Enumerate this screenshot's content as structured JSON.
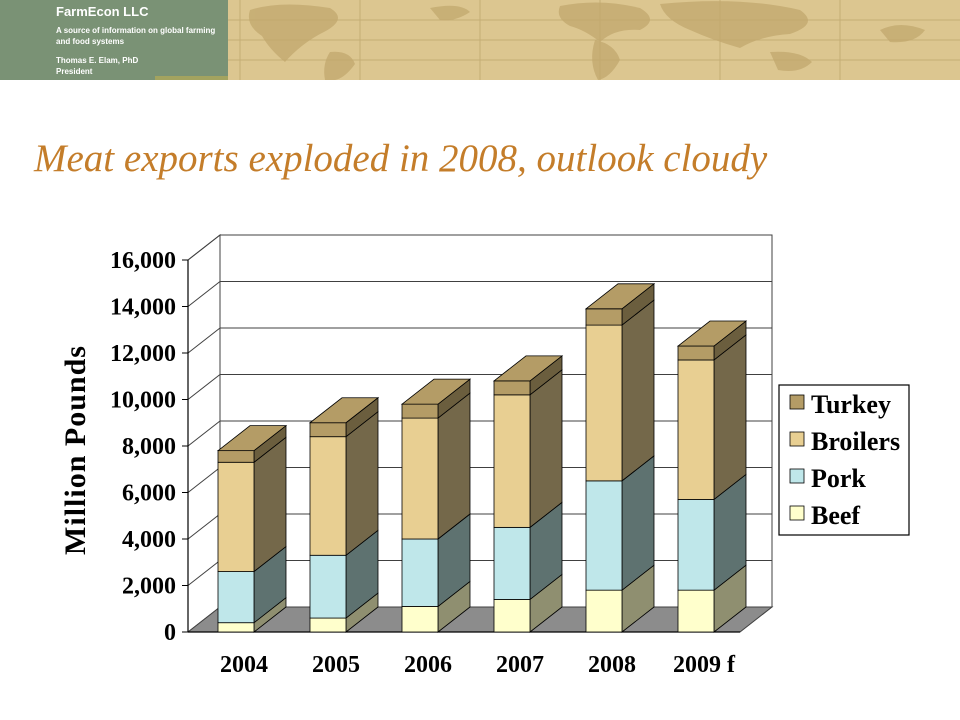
{
  "header": {
    "company": "FarmEcon LLC",
    "tagline": "A source of information on global farming and food systems",
    "person": "Thomas E. Elam, PhD",
    "role": "President"
  },
  "slide": {
    "title": "Meat exports exploded in 2008, outlook cloudy"
  },
  "chart_data": {
    "type": "bar",
    "stacked": true,
    "style": "3d",
    "categories": [
      "2004",
      "2005",
      "2006",
      "2007",
      "2008",
      "2009 f"
    ],
    "series": [
      {
        "name": "Beef",
        "values": [
          400,
          600,
          1100,
          1400,
          1800,
          1800
        ],
        "color": "#ffffcc",
        "side_color": "#8f8f70"
      },
      {
        "name": "Pork",
        "values": [
          2200,
          2700,
          2900,
          3100,
          4700,
          3900
        ],
        "color": "#bfe7ea",
        "side_color": "#5e7270"
      },
      {
        "name": "Broilers",
        "values": [
          4700,
          5100,
          5200,
          5700,
          6700,
          6000
        ],
        "color": "#e8cf92",
        "side_color": "#74684a"
      },
      {
        "name": "Turkey",
        "values": [
          500,
          600,
          600,
          600,
          700,
          600
        ],
        "color": "#b49c66",
        "side_color": "#6b5e3e"
      }
    ],
    "ylabel": "Million Pounds",
    "ylim": [
      0,
      16000
    ],
    "yticks": [
      "0",
      "2,000",
      "4,000",
      "6,000",
      "8,000",
      "10,000",
      "12,000",
      "14,000",
      "16,000"
    ],
    "grid": true,
    "legend_position": "right",
    "legend_order": [
      "Turkey",
      "Broilers",
      "Pork",
      "Beef"
    ]
  }
}
